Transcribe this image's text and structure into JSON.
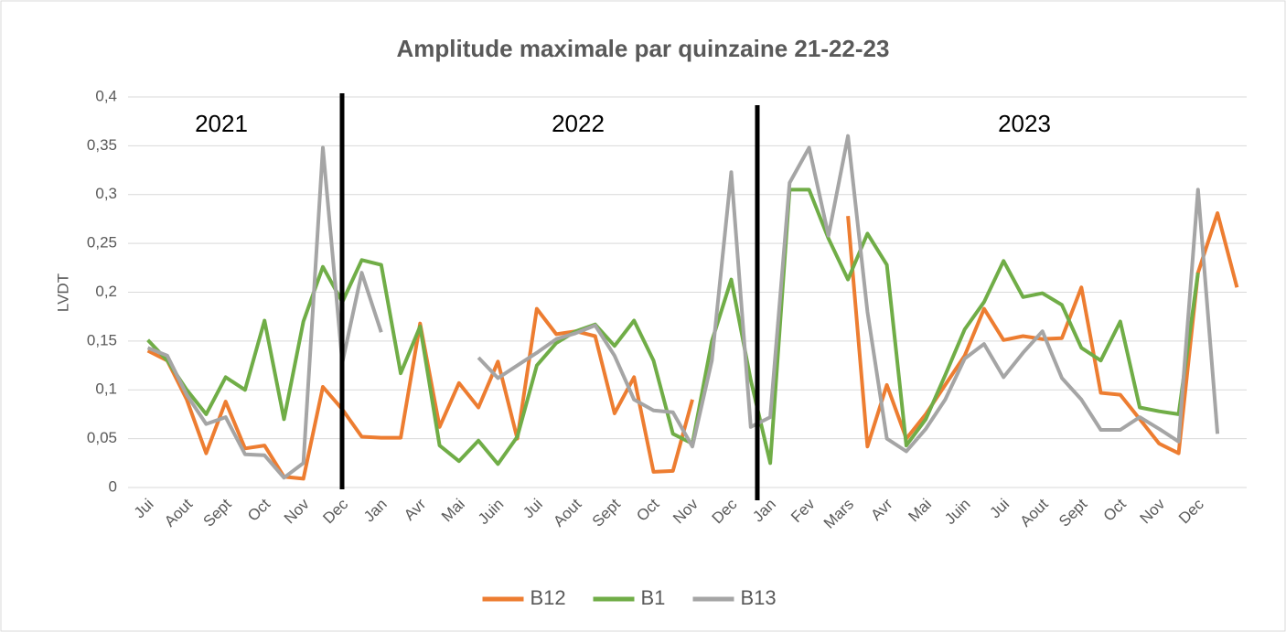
{
  "chart_data": {
    "type": "line",
    "title": "Amplitude maximale par quinzaine 21-22-23",
    "y_label": "LVDT",
    "annotations": [
      "2021",
      "2022",
      "2023"
    ],
    "categories": [
      "Jui",
      null,
      "Aout",
      null,
      "Sept",
      null,
      "Oct",
      null,
      "Nov",
      null,
      "Dec",
      null,
      "Jan",
      null,
      "Avr",
      null,
      "Mai",
      null,
      "Juin",
      null,
      "Jui",
      null,
      "Aout",
      null,
      "Sept",
      null,
      "Oct",
      null,
      "Nov",
      null,
      "Dec",
      null,
      "Jan",
      null,
      "Fev",
      null,
      "Mars",
      null,
      "Avr",
      null,
      "Mai",
      null,
      "Juin",
      null,
      "Jui",
      null,
      "Aout",
      null,
      "Sept",
      null,
      "Oct",
      null,
      "Nov",
      null,
      "Dec",
      null,
      null
    ],
    "series": [
      {
        "name": "B12",
        "color": "#ed7d31",
        "values": [
          0.14,
          0.13,
          0.09,
          0.035,
          0.088,
          0.04,
          0.043,
          0.011,
          0.009,
          0.103,
          0.08,
          0.052,
          0.051,
          0.051,
          0.168,
          0.062,
          0.107,
          0.082,
          0.129,
          0.05,
          0.183,
          0.157,
          0.16,
          0.155,
          0.076,
          0.113,
          0.016,
          0.017,
          0.09,
          null,
          null,
          null,
          null,
          null,
          null,
          null,
          0.278,
          0.042,
          0.105,
          0.05,
          0.075,
          0.105,
          0.135,
          0.183,
          0.151,
          0.155,
          0.152,
          0.153,
          0.205,
          0.097,
          0.095,
          0.07,
          0.045,
          0.035,
          0.22,
          0.281,
          0.205
        ]
      },
      {
        "name": "B1",
        "color": "#70ad47",
        "values": [
          0.151,
          0.13,
          0.1,
          0.075,
          0.113,
          0.1,
          0.171,
          0.07,
          0.17,
          0.226,
          0.19,
          0.233,
          0.228,
          0.117,
          0.165,
          0.043,
          0.027,
          0.048,
          0.024,
          0.052,
          0.125,
          0.148,
          0.16,
          0.167,
          0.145,
          0.171,
          0.13,
          0.055,
          0.045,
          0.15,
          0.213,
          0.11,
          0.025,
          0.305,
          0.305,
          0.255,
          0.213,
          0.26,
          0.228,
          0.043,
          0.07,
          0.115,
          0.162,
          0.19,
          0.232,
          0.195,
          0.199,
          0.187,
          0.143,
          0.13,
          0.17,
          0.082,
          0.078,
          0.075,
          0.22,
          null,
          null
        ]
      },
      {
        "name": "B13",
        "color": "#a5a5a5",
        "values": [
          0.143,
          0.135,
          0.095,
          0.065,
          0.072,
          0.034,
          0.033,
          0.01,
          0.025,
          0.348,
          0.128,
          0.22,
          0.159,
          null,
          null,
          null,
          null,
          0.133,
          0.112,
          0.125,
          0.138,
          0.152,
          0.158,
          0.166,
          0.135,
          0.09,
          0.079,
          0.077,
          0.042,
          0.13,
          0.323,
          0.062,
          0.072,
          0.312,
          0.348,
          0.258,
          0.36,
          0.18,
          0.05,
          0.037,
          0.06,
          0.09,
          0.132,
          0.147,
          0.113,
          0.138,
          0.16,
          0.112,
          0.09,
          0.059,
          0.059,
          0.072,
          0.06,
          0.047,
          0.305,
          0.055,
          null
        ]
      }
    ],
    "ylim": [
      0,
      0.4
    ],
    "yticks": [
      0,
      {
        "value": 0.05,
        "label": "0,05"
      },
      {
        "value": 0.1,
        "label": "0,1"
      },
      {
        "value": 0.15,
        "label": "0,15"
      },
      {
        "value": 0.2,
        "label": "0,2"
      },
      {
        "value": 0.25,
        "label": "0,25"
      },
      {
        "value": 0.3,
        "label": "0,3"
      },
      {
        "value": 0.35,
        "label": "0,35"
      },
      {
        "value": 0.4,
        "label": "0,4"
      }
    ],
    "grid": true,
    "legend": "bottom"
  }
}
